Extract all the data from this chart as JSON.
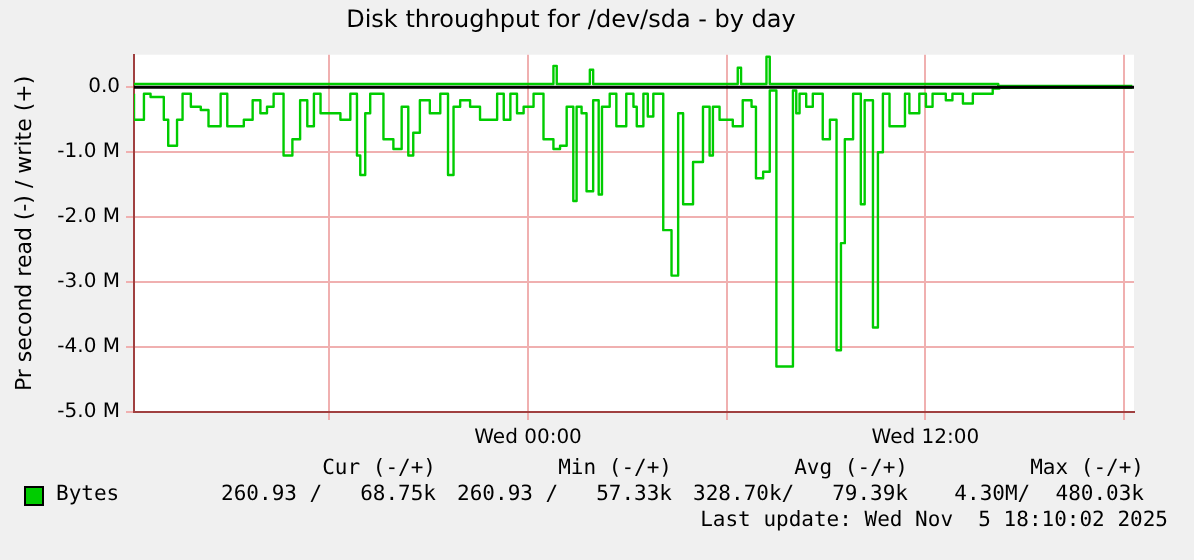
{
  "chart_data": {
    "type": "step",
    "title": "Disk throughput for /dev/sda - by day",
    "ylabel": "Pr second read (-) / write (+)",
    "xlim": [
      "2025-11-04T12:06",
      "2025-11-05T18:18"
    ],
    "xticks": [
      {
        "value": "2025-11-04T18:00",
        "label": null
      },
      {
        "value": "2025-11-05T00:00",
        "label": "Wed 00:00"
      },
      {
        "value": "2025-11-05T06:00",
        "label": null
      },
      {
        "value": "2025-11-05T12:00",
        "label": "Wed 12:00"
      },
      {
        "value": "2025-11-05T18:00",
        "label": null
      }
    ],
    "ylim": [
      -5000000,
      500000
    ],
    "yticks": [
      {
        "value": -5000000,
        "label": "-5.0 M"
      },
      {
        "value": -4000000,
        "label": "-4.0 M"
      },
      {
        "value": -3000000,
        "label": "-3.0 M"
      },
      {
        "value": -2000000,
        "label": "-2.0 M"
      },
      {
        "value": -1000000,
        "label": "-1.0 M"
      },
      {
        "value": 0,
        "label": "0.0"
      }
    ],
    "grid": true,
    "legend": "bottom",
    "ref_lines": [
      {
        "axis": "y",
        "value": 0,
        "color": "#000000"
      }
    ],
    "series": [
      {
        "name": "Bytes",
        "color": "#00cc00",
        "x": [
          "2025-11-04T12:06",
          "2025-11-04T12:24",
          "2025-11-04T12:36",
          "2025-11-04T13:00",
          "2025-11-04T13:08",
          "2025-11-04T13:24",
          "2025-11-04T13:34",
          "2025-11-04T13:49",
          "2025-11-04T14:07",
          "2025-11-04T14:21",
          "2025-11-04T14:43",
          "2025-11-04T14:55",
          "2025-11-04T15:25",
          "2025-11-04T15:41",
          "2025-11-04T15:55",
          "2025-11-04T16:07",
          "2025-11-04T16:19",
          "2025-11-04T16:37",
          "2025-11-04T16:53",
          "2025-11-04T17:07",
          "2025-11-04T17:20",
          "2025-11-04T17:32",
          "2025-11-04T17:44",
          "2025-11-04T18:08",
          "2025-11-04T18:20",
          "2025-11-04T18:38",
          "2025-11-04T18:50",
          "2025-11-04T18:56",
          "2025-11-04T19:05",
          "2025-11-04T19:14",
          "2025-11-04T19:38",
          "2025-11-04T19:56",
          "2025-11-04T20:11",
          "2025-11-04T20:23",
          "2025-11-04T20:32",
          "2025-11-04T20:44",
          "2025-11-04T21:02",
          "2025-11-04T21:21",
          "2025-11-04T21:35",
          "2025-11-04T21:45",
          "2025-11-04T21:57",
          "2025-11-04T22:15",
          "2025-11-04T22:33",
          "2025-11-04T23:04",
          "2025-11-04T23:16",
          "2025-11-04T23:28",
          "2025-11-04T23:40",
          "2025-11-04T23:52",
          "2025-11-05T00:10",
          "2025-11-05T00:28",
          "2025-11-05T00:46",
          "2025-11-05T00:58",
          "2025-11-05T01:10",
          "2025-11-05T01:22",
          "2025-11-05T01:28",
          "2025-11-05T01:37",
          "2025-11-05T01:46",
          "2025-11-05T01:58",
          "2025-11-05T02:08",
          "2025-11-05T02:14",
          "2025-11-05T02:28",
          "2025-11-05T02:40",
          "2025-11-05T02:58",
          "2025-11-05T03:11",
          "2025-11-05T03:17",
          "2025-11-05T03:29",
          "2025-11-05T03:37",
          "2025-11-05T03:47",
          "2025-11-05T04:05",
          "2025-11-05T04:20",
          "2025-11-05T04:32",
          "2025-11-05T04:41",
          "2025-11-05T04:59",
          "2025-11-05T05:17",
          "2025-11-05T05:29",
          "2025-11-05T05:35",
          "2025-11-05T05:47",
          "2025-11-05T06:11",
          "2025-11-05T06:29",
          "2025-11-05T06:45",
          "2025-11-05T06:53",
          "2025-11-05T07:06",
          "2025-11-05T07:18",
          "2025-11-05T07:30",
          "2025-11-05T08:00",
          "2025-11-05T08:06",
          "2025-11-05T08:12",
          "2025-11-05T08:24",
          "2025-11-05T08:36",
          "2025-11-05T08:54",
          "2025-11-05T09:07",
          "2025-11-05T09:19",
          "2025-11-05T09:27",
          "2025-11-05T09:34",
          "2025-11-05T09:49",
          "2025-11-05T10:03",
          "2025-11-05T10:10",
          "2025-11-05T10:25",
          "2025-11-05T10:34",
          "2025-11-05T10:43",
          "2025-11-05T10:55",
          "2025-11-05T11:23",
          "2025-11-05T11:31",
          "2025-11-05T11:49",
          "2025-11-05T12:01",
          "2025-11-05T12:13",
          "2025-11-05T12:37",
          "2025-11-05T12:49",
          "2025-11-05T13:08",
          "2025-11-05T13:26",
          "2025-11-05T13:50",
          "2025-11-05T14:02",
          "2025-11-05T14:14",
          "2025-11-05T18:15"
        ],
        "values": [
          -100000,
          -500000,
          -100000,
          -150000,
          -500000,
          -900000,
          -500000,
          -100000,
          -300000,
          -350000,
          -600000,
          -100000,
          -600000,
          -500000,
          -200000,
          -400000,
          -300000,
          -100000,
          -1050000,
          -800000,
          -200000,
          -600000,
          -100000,
          -400000,
          -400000,
          -500000,
          -100000,
          -1050000,
          -1350000,
          -400000,
          -100000,
          -800000,
          -950000,
          -300000,
          -1050000,
          -700000,
          -200000,
          -400000,
          -100000,
          -1350000,
          -300000,
          -200000,
          -300000,
          -500000,
          -100000,
          -500000,
          -100000,
          -400000,
          -300000,
          -100000,
          -800000,
          -950000,
          -900000,
          -300000,
          -1750000,
          -300000,
          -400000,
          -1600000,
          -200000,
          -1650000,
          -300000,
          -100000,
          -600000,
          -100000,
          -300000,
          -600000,
          -100000,
          -450000,
          -100000,
          -2200000,
          -2900000,
          -400000,
          -1800000,
          -1150000,
          -300000,
          -1050000,
          -300000,
          -500000,
          -600000,
          -200000,
          -300000,
          -1400000,
          -1300000,
          -50000,
          -4300000,
          -50000,
          -400000,
          -100000,
          -300000,
          -100000,
          -800000,
          -500000,
          -4050000,
          -2400000,
          -800000,
          -100000,
          -1800000,
          -200000,
          -3700000,
          -1000000,
          -100000,
          -600000,
          -100000,
          -400000,
          -100000,
          -300000,
          -100000,
          -200000,
          -100000,
          -250000,
          -100000,
          -100000,
          -20000,
          -10000
        ]
      },
      {
        "color": "#00cc00",
        "x": [
          "2025-11-04T12:06",
          "2025-11-05T00:46",
          "2025-11-05T00:52",
          "2025-11-05T00:58",
          "2025-11-05T01:52",
          "2025-11-05T01:58",
          "2025-11-05T02:04",
          "2025-11-05T06:20",
          "2025-11-05T06:26",
          "2025-11-05T06:32",
          "2025-11-05T07:12",
          "2025-11-05T07:18",
          "2025-11-05T07:24",
          "2025-11-05T14:12",
          "2025-11-05T18:15"
        ],
        "values": [
          50000,
          50000,
          330000,
          50000,
          50000,
          270000,
          50000,
          50000,
          300000,
          50000,
          50000,
          470000,
          50000,
          50000,
          20000
        ]
      }
    ],
    "annotations": [
      "Cur (-/+)",
      "Min (-/+)",
      "Avg (-/+)",
      "Max (-/+)",
      "260.93 /   68.75k",
      "260.93 /   57.33k",
      "328.70k/   79.39k",
      "4.30M/  480.03k",
      "Last update: Wed Nov  5 18:10:02 2025"
    ]
  }
}
